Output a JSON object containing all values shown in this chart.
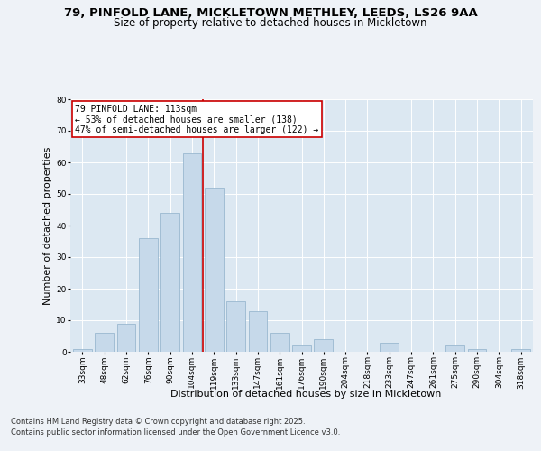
{
  "title_line1": "79, PINFOLD LANE, MICKLETOWN METHLEY, LEEDS, LS26 9AA",
  "title_line2": "Size of property relative to detached houses in Mickletown",
  "xlabel": "Distribution of detached houses by size in Mickletown",
  "ylabel": "Number of detached properties",
  "bar_labels": [
    "33sqm",
    "48sqm",
    "62sqm",
    "76sqm",
    "90sqm",
    "104sqm",
    "119sqm",
    "133sqm",
    "147sqm",
    "161sqm",
    "176sqm",
    "190sqm",
    "204sqm",
    "218sqm",
    "233sqm",
    "247sqm",
    "261sqm",
    "275sqm",
    "290sqm",
    "304sqm",
    "318sqm"
  ],
  "bar_values": [
    1,
    6,
    9,
    36,
    44,
    63,
    52,
    16,
    13,
    6,
    2,
    4,
    0,
    0,
    3,
    0,
    0,
    2,
    1,
    0,
    1
  ],
  "bar_color": "#c6d9ea",
  "bar_edge_color": "#9ab8d0",
  "vline_x_index": 5.5,
  "vline_color": "#cc0000",
  "annotation_line1": "79 PINFOLD LANE: 113sqm",
  "annotation_line2": "← 53% of detached houses are smaller (138)",
  "annotation_line3": "47% of semi-detached houses are larger (122) →",
  "box_edge_color": "#cc0000",
  "footnote_line1": "Contains HM Land Registry data © Crown copyright and database right 2025.",
  "footnote_line2": "Contains public sector information licensed under the Open Government Licence v3.0.",
  "ylim": [
    0,
    80
  ],
  "yticks": [
    0,
    10,
    20,
    30,
    40,
    50,
    60,
    70,
    80
  ],
  "bg_color": "#eef2f7",
  "plot_bg_color": "#dce8f2",
  "title_fontsize": 9.5,
  "subtitle_fontsize": 8.5,
  "ylabel_fontsize": 8,
  "xlabel_fontsize": 8,
  "tick_fontsize": 6.5,
  "annotation_fontsize": 7,
  "footnote_fontsize": 6
}
